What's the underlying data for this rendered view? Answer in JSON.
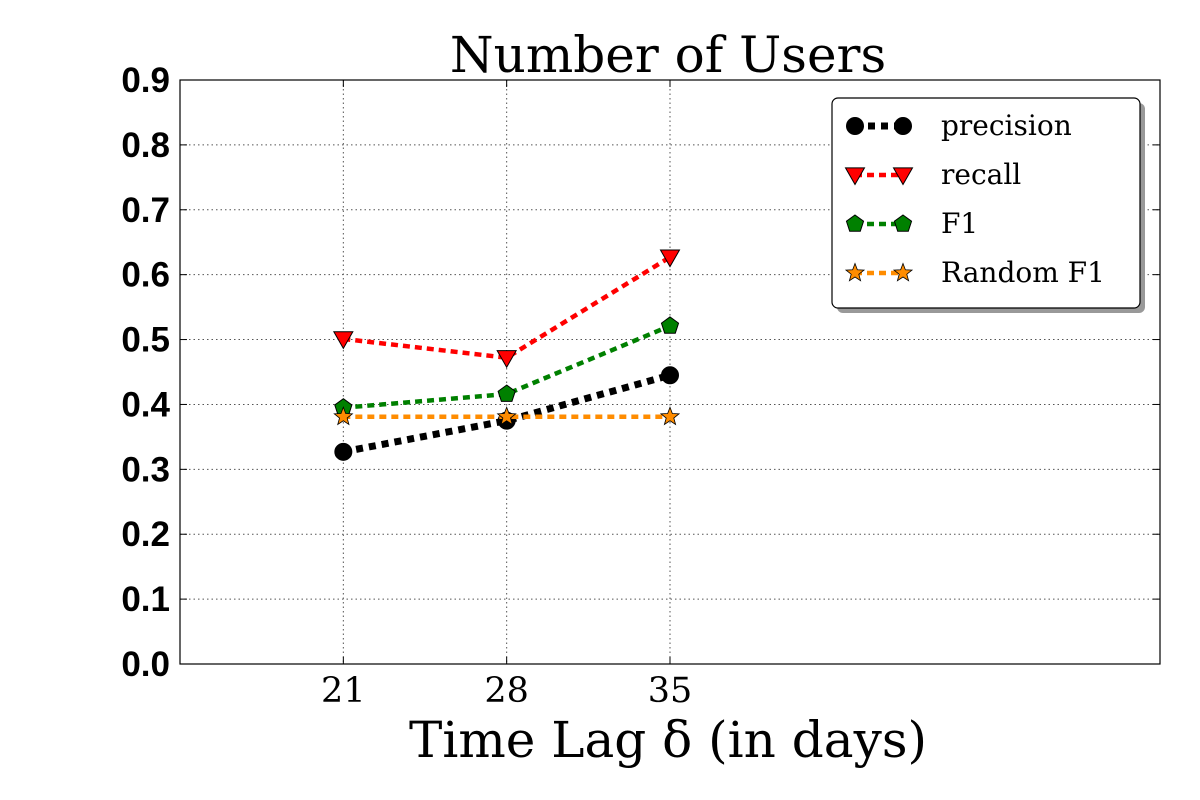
{
  "chart_data": {
    "type": "line",
    "title": "Number of Users",
    "xlabel": "Time Lag δ (in days)",
    "ylabel": "",
    "x": [
      21,
      28,
      35
    ],
    "xlim": [
      14,
      56
    ],
    "ylim": [
      0.0,
      0.9
    ],
    "x_ticks": [
      "21",
      "28",
      "35"
    ],
    "y_ticks": [
      "0.0",
      "0.1",
      "0.2",
      "0.3",
      "0.4",
      "0.5",
      "0.6",
      "0.7",
      "0.8",
      "0.9"
    ],
    "grid": true,
    "legend_position": "top-right",
    "series": [
      {
        "name": "precision",
        "values": [
          0.327,
          0.375,
          0.445
        ],
        "color": "#000000",
        "marker": "circle"
      },
      {
        "name": "recall",
        "values": [
          0.501,
          0.472,
          0.627
        ],
        "color": "#ff0000",
        "marker": "triangle-down"
      },
      {
        "name": "F1",
        "values": [
          0.395,
          0.416,
          0.521
        ],
        "color": "#008000",
        "marker": "pentagon"
      },
      {
        "name": "Random F1",
        "values": [
          0.381,
          0.381,
          0.381
        ],
        "color": "#ff8c00",
        "marker": "star"
      }
    ]
  }
}
